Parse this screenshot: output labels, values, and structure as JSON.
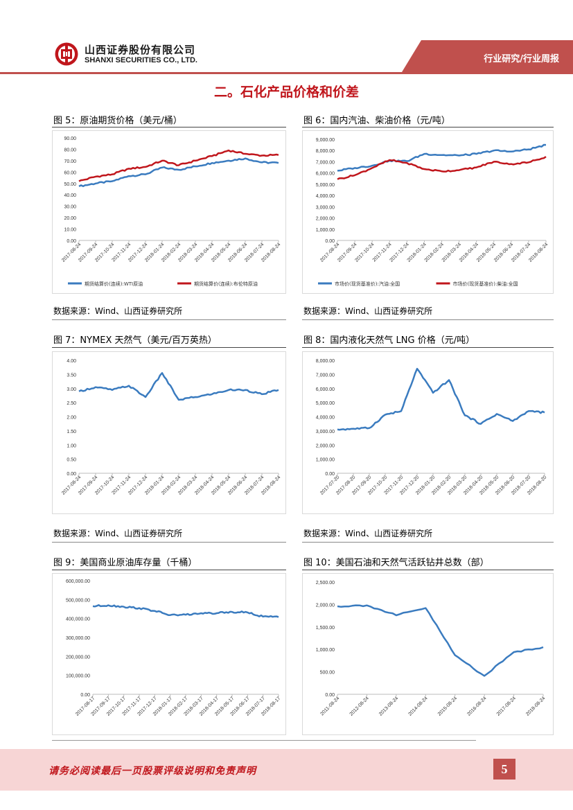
{
  "header": {
    "company_cn": "山西证券股份有限公司",
    "company_en": "SHANXI SECURITIES CO., LTD.",
    "tag": "行业研究/行业周报",
    "brand_color": "#c0504d"
  },
  "section_title": "二。石化产品价格和价差",
  "figures": {
    "fig5": {
      "title": "图 5：原油期货价格（美元/桶）",
      "source": "数据来源：Wind、山西证券研究所"
    },
    "fig6": {
      "title": "图 6：国内汽油、柴油价格（元/吨）",
      "source": "数据来源：Wind、山西证券研究所"
    },
    "fig7": {
      "title": "图 7：NYMEX 天然气（美元/百万英热）",
      "source": "数据来源：Wind、山西证券研究所"
    },
    "fig8": {
      "title": "图 8：国内液化天然气 LNG 价格（元/吨）",
      "source": "数据来源：Wind、山西证券研究所"
    },
    "fig9": {
      "title": "图 9：美国商业原油库存量（千桶）"
    },
    "fig10": {
      "title": "图 10：美国石油和天然气活跃钻井总数（部）"
    }
  },
  "chart_data": [
    {
      "id": "fig5",
      "type": "line",
      "categories": [
        "2017-08-24",
        "2017-09-24",
        "2017-10-24",
        "2017-11-24",
        "2017-12-24",
        "2018-01-24",
        "2018-02-24",
        "2018-03-24",
        "2018-04-24",
        "2018-05-24",
        "2018-06-24",
        "2018-07-24",
        "2018-08-24"
      ],
      "ylim": [
        0,
        90
      ],
      "yticks": [
        "0.00",
        "10.00",
        "20.00",
        "30.00",
        "40.00",
        "50.00",
        "60.00",
        "70.00",
        "80.00",
        "90.00"
      ],
      "series": [
        {
          "name": "期货结算价(连续):WTI原油",
          "color": "#3a7bbf",
          "values": [
            47.5,
            50,
            52,
            56.5,
            58,
            64,
            62,
            65,
            68,
            70,
            72,
            68.5,
            68
          ]
        },
        {
          "name": "期货结算价(连续):布伦特原油",
          "color": "#c0161c",
          "values": [
            52,
            56,
            58,
            63,
            64.5,
            70,
            66,
            70,
            74,
            79,
            76,
            74.5,
            75
          ]
        }
      ]
    },
    {
      "id": "fig6",
      "type": "line",
      "categories": [
        "2017-08-24",
        "2017-09-24",
        "2017-10-24",
        "2017-11-24",
        "2017-12-24",
        "2018-01-24",
        "2018-02-24",
        "2018-03-24",
        "2018-04-24",
        "2018-05-24",
        "2018-06-24",
        "2018-07-24",
        "2018-08-24"
      ],
      "ylim": [
        0,
        9000
      ],
      "yticks": [
        "0.00",
        "1,000.00",
        "2,000.00",
        "3,000.00",
        "4,000.00",
        "5,000.00",
        "6,000.00",
        "7,000.00",
        "8,000.00",
        "9,000.00"
      ],
      "series": [
        {
          "name": "市场价(现货基准价):汽油:全国",
          "color": "#3a7bbf",
          "values": [
            6200,
            6450,
            6650,
            7100,
            7050,
            7700,
            7600,
            7550,
            7700,
            8000,
            7900,
            8100,
            8500
          ]
        },
        {
          "name": "市场价(现货基准价):柴油:全国",
          "color": "#c0161c",
          "values": [
            5450,
            5800,
            6450,
            7150,
            6900,
            6350,
            6150,
            6250,
            6500,
            7000,
            6800,
            6950,
            7450
          ]
        }
      ]
    },
    {
      "id": "fig7",
      "type": "line",
      "categories": [
        "2017-08-24",
        "2017-09-24",
        "2017-10-24",
        "2017-11-24",
        "2017-12-24",
        "2018-01-24",
        "2018-02-24",
        "2018-03-24",
        "2018-04-24",
        "2018-05-24",
        "2018-06-24",
        "2018-07-24",
        "2018-08-24"
      ],
      "ylim": [
        0,
        4
      ],
      "yticks": [
        "0.00",
        "0.50",
        "1.00",
        "1.50",
        "2.00",
        "2.50",
        "3.00",
        "3.50",
        "4.00"
      ],
      "series": [
        {
          "name": "NYMEX天然气",
          "color": "#3a7bbf",
          "values": [
            2.9,
            3.05,
            2.95,
            3.1,
            2.7,
            3.55,
            2.6,
            2.7,
            2.8,
            2.95,
            2.95,
            2.8,
            2.95
          ]
        }
      ]
    },
    {
      "id": "fig8",
      "type": "line",
      "categories": [
        "2017-07-20",
        "2017-08-20",
        "2017-09-20",
        "2017-10-20",
        "2017-11-20",
        "2017-12-20",
        "2018-01-20",
        "2018-02-20",
        "2018-03-20",
        "2018-04-20",
        "2018-05-20",
        "2018-06-20",
        "2018-07-20",
        "2018-08-20"
      ],
      "ylim": [
        0,
        8000
      ],
      "yticks": [
        "0.00",
        "1,000.00",
        "2,000.00",
        "3,000.00",
        "4,000.00",
        "5,000.00",
        "6,000.00",
        "7,000.00",
        "8,000.00"
      ],
      "series": [
        {
          "name": "LNG价格",
          "color": "#3a7bbf",
          "values": [
            3100,
            3150,
            3200,
            4150,
            4400,
            7400,
            5700,
            6600,
            4100,
            3500,
            4200,
            3700,
            4400,
            4300
          ]
        }
      ]
    },
    {
      "id": "fig9",
      "type": "line",
      "categories": [
        "2017-08-17",
        "2017-09-17",
        "2017-10-17",
        "2017-11-17",
        "2017-12-17",
        "2018-01-17",
        "2018-02-17",
        "2018-03-17",
        "2018-04-17",
        "2018-05-17",
        "2018-06-17",
        "2018-07-17",
        "2018-08-17"
      ],
      "ylim": [
        0,
        600000
      ],
      "yticks": [
        "0.00",
        "100,000.00",
        "200,000.00",
        "300,000.00",
        "400,000.00",
        "500,000.00",
        "600,000.00"
      ],
      "series": [
        {
          "name": "美国商业原油库存",
          "color": "#3a7bbf",
          "values": [
            465000,
            470000,
            462000,
            455000,
            440000,
            418000,
            420000,
            428000,
            428000,
            435000,
            432000,
            410000,
            408000
          ]
        }
      ]
    },
    {
      "id": "fig10",
      "type": "line",
      "categories": [
        "2011-08-24",
        "2012-08-24",
        "2013-08-24",
        "2014-08-24",
        "2015-08-24",
        "2016-08-24",
        "2017-08-24",
        "2018-08-24"
      ],
      "ylim": [
        0,
        2500
      ],
      "yticks": [
        "0.00",
        "500.00",
        "1,000.00",
        "1,500.00",
        "2,000.00",
        "2,500.00"
      ],
      "series": [
        {
          "name": "美国石油和天然气活跃钻井总数",
          "color": "#3a7bbf",
          "values": [
            1960,
            1980,
            1760,
            1920,
            870,
            410,
            940,
            1050
          ]
        }
      ]
    }
  ],
  "footer": {
    "disclaimer": "请务必阅读最后一页股票评级说明和免责声明",
    "page_number": "5"
  }
}
